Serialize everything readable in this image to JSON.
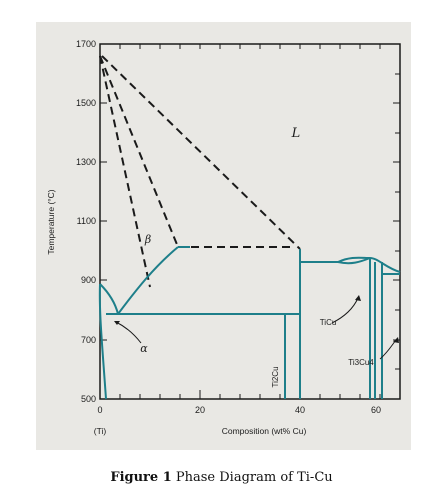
{
  "figure": {
    "caption_label": "Figure 1",
    "caption_text": "Phase Diagram of Ti-Cu"
  },
  "axes": {
    "ylabel": "Temperature (°C)",
    "xlabel": "Composition (wt% Cu)",
    "x_end_note": "(Ti)",
    "y_ticks": [
      "1700",
      "1500",
      "1300",
      "1100",
      "900",
      "700",
      "500"
    ],
    "x_ticks": [
      "0",
      "20",
      "40",
      "60"
    ]
  },
  "phases": {
    "liquid": "L",
    "beta": "β",
    "alpha": "α",
    "ti2cu": "Ti2Cu",
    "ticu": "TiCu",
    "ti3cu4": "Ti3Cu4"
  },
  "colors": {
    "phase_line": "#1e7f8a",
    "liquidus_dash": "#1a1a1a",
    "frame": "#1a1a1a",
    "photo_bg": "#e9e8e4"
  }
}
